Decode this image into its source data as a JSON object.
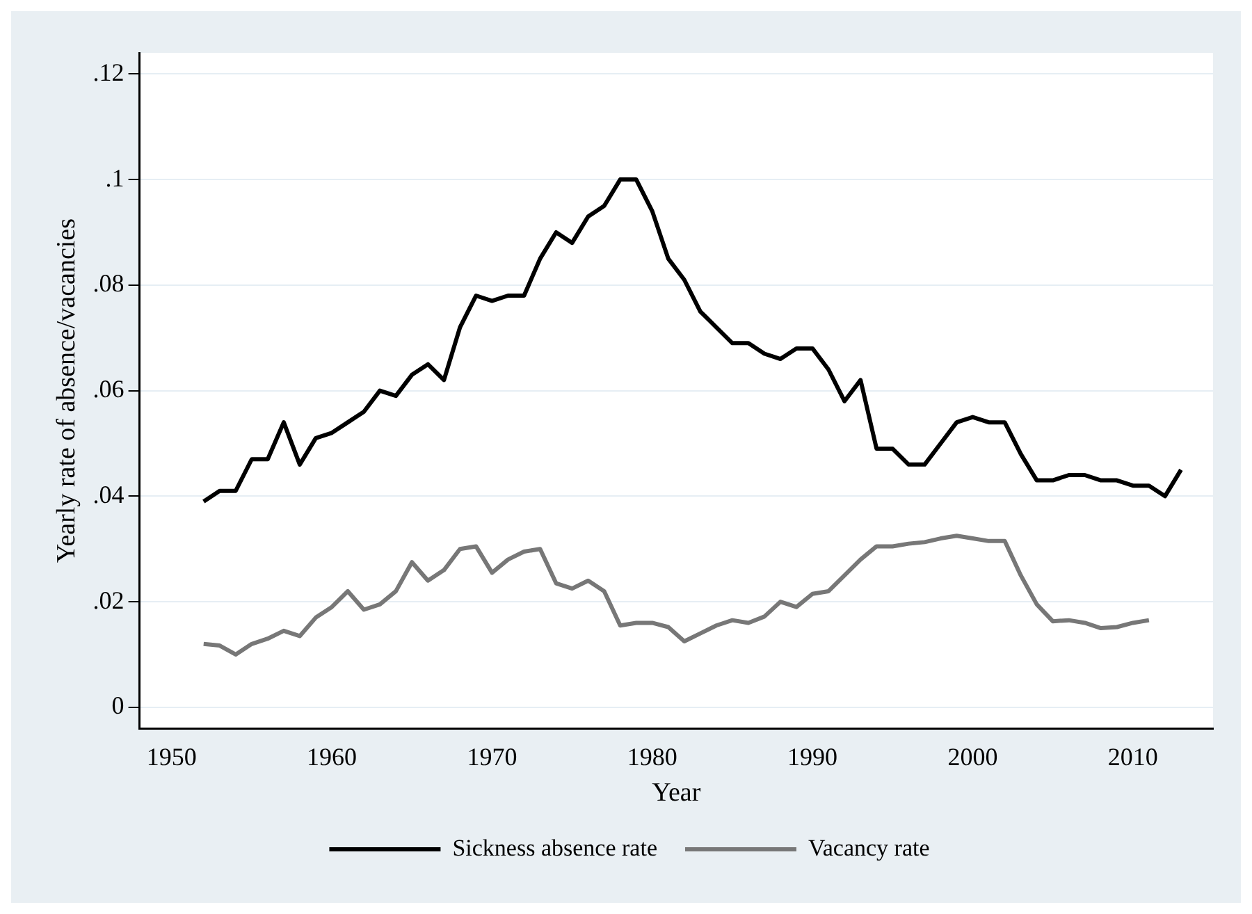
{
  "chart_data": {
    "type": "line",
    "xlabel": "Year",
    "ylabel": "Yearly rate of absence/vacancies",
    "xlim": [
      1948,
      2015
    ],
    "xticks": [
      1950,
      1960,
      1970,
      1980,
      1990,
      2000,
      2010
    ],
    "ylim": [
      -0.004,
      0.124
    ],
    "yticks": [
      {
        "value": 0,
        "label": "0"
      },
      {
        "value": 0.02,
        "label": ".02"
      },
      {
        "value": 0.04,
        "label": ".04"
      },
      {
        "value": 0.06,
        "label": ".06"
      },
      {
        "value": 0.08,
        "label": ".08"
      },
      {
        "value": 0.1,
        "label": ".1"
      },
      {
        "value": 0.12,
        "label": ".12"
      }
    ],
    "grid": "y",
    "legend": "bottom",
    "marker": "none",
    "line_style": "solid",
    "series": [
      {
        "name": "Sickness absence rate",
        "color": "#000000",
        "x": [
          1952,
          1953,
          1954,
          1955,
          1956,
          1957,
          1958,
          1959,
          1960,
          1961,
          1962,
          1963,
          1964,
          1965,
          1966,
          1967,
          1968,
          1969,
          1970,
          1971,
          1972,
          1973,
          1974,
          1975,
          1976,
          1977,
          1978,
          1979,
          1980,
          1981,
          1982,
          1983,
          1984,
          1985,
          1986,
          1987,
          1988,
          1989,
          1990,
          1991,
          1992,
          1993,
          1994,
          1995,
          1996,
          1997,
          1998,
          1999,
          2000,
          2001,
          2002,
          2003,
          2004,
          2005,
          2006,
          2007,
          2008,
          2009,
          2010,
          2011,
          2012,
          2013
        ],
        "values": [
          0.039,
          0.041,
          0.041,
          0.047,
          0.047,
          0.054,
          0.046,
          0.051,
          0.052,
          0.054,
          0.056,
          0.06,
          0.059,
          0.063,
          0.065,
          0.062,
          0.072,
          0.078,
          0.077,
          0.078,
          0.078,
          0.085,
          0.09,
          0.088,
          0.093,
          0.095,
          0.1,
          0.1,
          0.094,
          0.085,
          0.081,
          0.075,
          0.072,
          0.069,
          0.069,
          0.067,
          0.066,
          0.068,
          0.068,
          0.064,
          0.058,
          0.062,
          0.049,
          0.049,
          0.046,
          0.046,
          0.05,
          0.054,
          0.055,
          0.054,
          0.054,
          0.048,
          0.043,
          0.043,
          0.044,
          0.044,
          0.043,
          0.043,
          0.042,
          0.042,
          0.04,
          0.045
        ]
      },
      {
        "name": "Vacancy rate",
        "color": "#777777",
        "x": [
          1952,
          1953,
          1954,
          1955,
          1956,
          1957,
          1958,
          1959,
          1960,
          1961,
          1962,
          1963,
          1964,
          1965,
          1966,
          1967,
          1968,
          1969,
          1970,
          1971,
          1972,
          1973,
          1974,
          1975,
          1976,
          1977,
          1978,
          1979,
          1980,
          1981,
          1982,
          1983,
          1984,
          1985,
          1986,
          1987,
          1988,
          1989,
          1990,
          1991,
          1992,
          1993,
          1994,
          1995,
          1996,
          1997,
          1998,
          1999,
          2000,
          2001,
          2002,
          2003,
          2004,
          2005,
          2006,
          2007,
          2008,
          2009,
          2010,
          2011
        ],
        "values": [
          0.012,
          0.0117,
          0.01,
          0.012,
          0.013,
          0.0145,
          0.0135,
          0.017,
          0.019,
          0.022,
          0.0185,
          0.0195,
          0.022,
          0.0275,
          0.024,
          0.026,
          0.03,
          0.0305,
          0.0255,
          0.028,
          0.0295,
          0.03,
          0.0235,
          0.0225,
          0.024,
          0.022,
          0.0155,
          0.016,
          0.016,
          0.0152,
          0.0125,
          0.014,
          0.0155,
          0.0165,
          0.016,
          0.0172,
          0.02,
          0.019,
          0.0215,
          0.022,
          0.025,
          0.028,
          0.0305,
          0.0305,
          0.031,
          0.0313,
          0.032,
          0.0325,
          0.032,
          0.0315,
          0.0315,
          0.025,
          0.0195,
          0.0163,
          0.0165,
          0.016,
          0.015,
          0.0152,
          0.016,
          0.0165
        ]
      }
    ]
  }
}
